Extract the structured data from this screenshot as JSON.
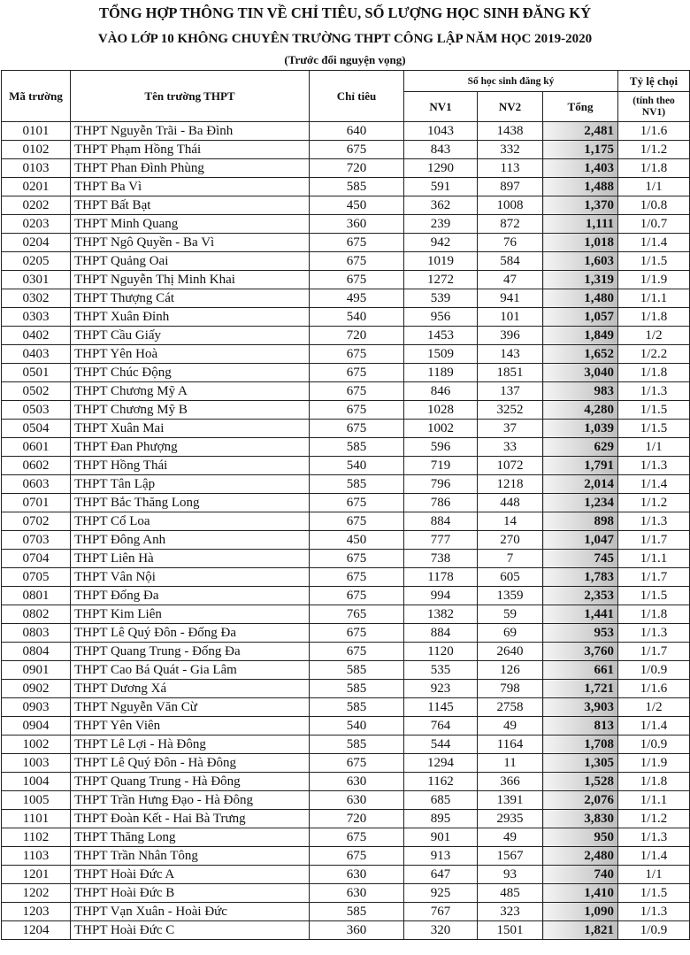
{
  "header": {
    "title_line1": "TỔNG HỢP THÔNG TIN VỀ CHỈ TIÊU, SỐ LƯỢNG HỌC SINH ĐĂNG KÝ",
    "title_line2": "VÀO LỚP 10 KHÔNG CHUYÊN TRƯỜNG THPT CÔNG LẬP NĂM HỌC 2019-2020",
    "subtitle": "(Trước đổi nguyện vọng)"
  },
  "table": {
    "columns": {
      "code": "Mã trường",
      "name": "Tên trường THPT",
      "quota": "Chỉ tiêu",
      "registered": "Số học sinh đăng ký",
      "nv1": "NV1",
      "nv2": "NV2",
      "total": "Tổng",
      "ratio": "Tỷ lệ chọi",
      "ratio_note": "(tính theo NV1)"
    },
    "rows": [
      [
        "0101",
        "THPT Nguyễn Trãi - Ba Đình",
        "640",
        "1043",
        "1438",
        "2,481",
        "1/1.6"
      ],
      [
        "0102",
        "THPT Phạm Hồng Thái",
        "675",
        "843",
        "332",
        "1,175",
        "1/1.2"
      ],
      [
        "0103",
        "THPT Phan Đình Phùng",
        "720",
        "1290",
        "113",
        "1,403",
        "1/1.8"
      ],
      [
        "0201",
        "THPT Ba Vì",
        "585",
        "591",
        "897",
        "1,488",
        "1/1"
      ],
      [
        "0202",
        "THPT Bất Bạt",
        "450",
        "362",
        "1008",
        "1,370",
        "1/0.8"
      ],
      [
        "0203",
        "THPT Minh Quang",
        "360",
        "239",
        "872",
        "1,111",
        "1/0.7"
      ],
      [
        "0204",
        "THPT Ngô Quyền - Ba Vì",
        "675",
        "942",
        "76",
        "1,018",
        "1/1.4"
      ],
      [
        "0205",
        "THPT Quảng Oai",
        "675",
        "1019",
        "584",
        "1,603",
        "1/1.5"
      ],
      [
        "0301",
        "THPT Nguyễn Thị Minh Khai",
        "675",
        "1272",
        "47",
        "1,319",
        "1/1.9"
      ],
      [
        "0302",
        "THPT Thượng Cát",
        "495",
        "539",
        "941",
        "1,480",
        "1/1.1"
      ],
      [
        "0303",
        "THPT Xuân Đỉnh",
        "540",
        "956",
        "101",
        "1,057",
        "1/1.8"
      ],
      [
        "0402",
        "THPT Cầu Giấy",
        "720",
        "1453",
        "396",
        "1,849",
        "1/2"
      ],
      [
        "0403",
        "THPT Yên Hoà",
        "675",
        "1509",
        "143",
        "1,652",
        "1/2.2"
      ],
      [
        "0501",
        "THPT Chúc Động",
        "675",
        "1189",
        "1851",
        "3,040",
        "1/1.8"
      ],
      [
        "0502",
        "THPT Chương Mỹ A",
        "675",
        "846",
        "137",
        "983",
        "1/1.3"
      ],
      [
        "0503",
        "THPT Chương Mỹ B",
        "675",
        "1028",
        "3252",
        "4,280",
        "1/1.5"
      ],
      [
        "0504",
        "THPT Xuân Mai",
        "675",
        "1002",
        "37",
        "1,039",
        "1/1.5"
      ],
      [
        "0601",
        "THPT Đan Phượng",
        "585",
        "596",
        "33",
        "629",
        "1/1"
      ],
      [
        "0602",
        "THPT Hồng Thái",
        "540",
        "719",
        "1072",
        "1,791",
        "1/1.3"
      ],
      [
        "0603",
        "THPT Tân Lập",
        "585",
        "796",
        "1218",
        "2,014",
        "1/1.4"
      ],
      [
        "0701",
        "THPT Bắc Thăng Long",
        "675",
        "786",
        "448",
        "1,234",
        "1/1.2"
      ],
      [
        "0702",
        "THPT Cổ Loa",
        "675",
        "884",
        "14",
        "898",
        "1/1.3"
      ],
      [
        "0703",
        "THPT Đông Anh",
        "450",
        "777",
        "270",
        "1,047",
        "1/1.7"
      ],
      [
        "0704",
        "THPT Liên Hà",
        "675",
        "738",
        "7",
        "745",
        "1/1.1"
      ],
      [
        "0705",
        "THPT Vân Nội",
        "675",
        "1178",
        "605",
        "1,783",
        "1/1.7"
      ],
      [
        "0801",
        "THPT Đống Đa",
        "675",
        "994",
        "1359",
        "2,353",
        "1/1.5"
      ],
      [
        "0802",
        "THPT Kim Liên",
        "765",
        "1382",
        "59",
        "1,441",
        "1/1.8"
      ],
      [
        "0803",
        "THPT Lê Quý Đôn - Đống Đa",
        "675",
        "884",
        "69",
        "953",
        "1/1.3"
      ],
      [
        "0804",
        "THPT Quang Trung - Đống Đa",
        "675",
        "1120",
        "2640",
        "3,760",
        "1/1.7"
      ],
      [
        "0901",
        "THPT Cao Bá Quát - Gia Lâm",
        "585",
        "535",
        "126",
        "661",
        "1/0.9"
      ],
      [
        "0902",
        "THPT Dương Xá",
        "585",
        "923",
        "798",
        "1,721",
        "1/1.6"
      ],
      [
        "0903",
        "THPT Nguyễn Văn Cừ",
        "585",
        "1145",
        "2758",
        "3,903",
        "1/2"
      ],
      [
        "0904",
        "THPT Yên Viên",
        "540",
        "764",
        "49",
        "813",
        "1/1.4"
      ],
      [
        "1002",
        "THPT Lê Lợi - Hà Đông",
        "585",
        "544",
        "1164",
        "1,708",
        "1/0.9"
      ],
      [
        "1003",
        "THPT Lê Quý Đôn - Hà Đông",
        "675",
        "1294",
        "11",
        "1,305",
        "1/1.9"
      ],
      [
        "1004",
        "THPT Quang Trung - Hà Đông",
        "630",
        "1162",
        "366",
        "1,528",
        "1/1.8"
      ],
      [
        "1005",
        "THPT Trần Hưng Đạo - Hà Đông",
        "630",
        "685",
        "1391",
        "2,076",
        "1/1.1"
      ],
      [
        "1101",
        "THPT Đoàn Kết - Hai Bà Trưng",
        "720",
        "895",
        "2935",
        "3,830",
        "1/1.2"
      ],
      [
        "1102",
        "THPT Thăng Long",
        "675",
        "901",
        "49",
        "950",
        "1/1.3"
      ],
      [
        "1103",
        "THPT Trần Nhân Tông",
        "675",
        "913",
        "1567",
        "2,480",
        "1/1.4"
      ],
      [
        "1201",
        "THPT Hoài Đức A",
        "630",
        "647",
        "93",
        "740",
        "1/1"
      ],
      [
        "1202",
        "THPT Hoài Đức B",
        "630",
        "925",
        "485",
        "1,410",
        "1/1.5"
      ],
      [
        "1203",
        "THPT Vạn Xuân - Hoài Đức",
        "585",
        "767",
        "323",
        "1,090",
        "1/1.3"
      ],
      [
        "1204",
        "THPT Hoài Đức C",
        "360",
        "320",
        "1501",
        "1,821",
        "1/0.9"
      ]
    ]
  }
}
